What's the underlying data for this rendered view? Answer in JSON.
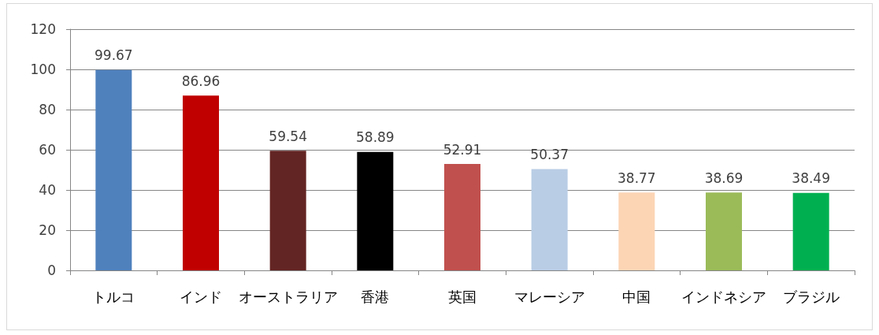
{
  "chart_data": {
    "type": "bar",
    "categories": [
      "トルコ",
      "インド",
      "オーストラリア",
      "香港",
      "英国",
      "マレーシア",
      "中国",
      "インドネシア",
      "ブラジル"
    ],
    "values": [
      99.67,
      86.96,
      59.54,
      58.89,
      52.91,
      50.37,
      38.77,
      38.69,
      38.49
    ],
    "colors": [
      "#4f81bd",
      "#c00000",
      "#632523",
      "#000000",
      "#c0504d",
      "#b9cde5",
      "#fcd5b5",
      "#9bbb59",
      "#00b050"
    ],
    "ylim": [
      0,
      120
    ],
    "yticks": [
      0,
      20,
      40,
      60,
      80,
      100,
      120
    ],
    "grid": "y",
    "data_labels": true
  }
}
